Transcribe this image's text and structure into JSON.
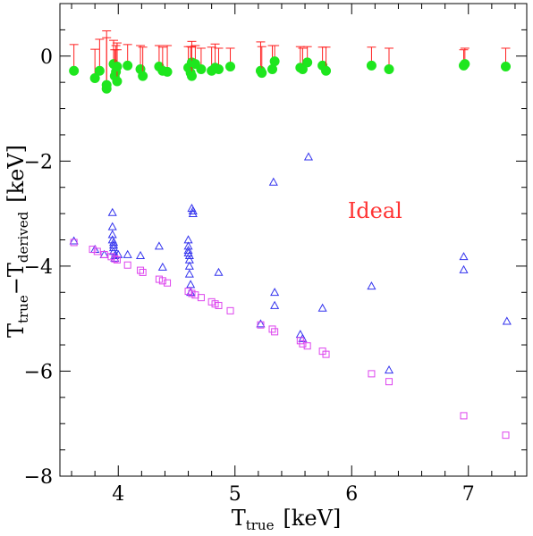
{
  "chart_data": {
    "type": "scatter",
    "title": "",
    "xlabel": {
      "main": "T",
      "sub": "true",
      "unit": "[keV]"
    },
    "ylabel": {
      "main1": "T",
      "sub1": "true",
      "minus": "−",
      "main2": "T",
      "sub2": "derived",
      "unit": "[keV]"
    },
    "xlim": [
      3.5,
      7.5
    ],
    "ylim": [
      -8,
      1
    ],
    "xticks": [
      4,
      5,
      6,
      7
    ],
    "yticks": [
      -8,
      -6,
      -4,
      -2,
      0
    ],
    "xminor_step": 0.2,
    "yminor_step": 0.5,
    "grid": false,
    "annotation": {
      "text": "Ideal",
      "x": 6.2,
      "y": -2.95,
      "color": "#ff3333"
    },
    "series": [
      {
        "name": "",
        "marker": "filled-circle",
        "color": "#1ee61e",
        "errorbar_color": "#ff2020",
        "points": [
          [
            3.62,
            -0.28,
            0.5
          ],
          [
            3.8,
            -0.42,
            0.55
          ],
          [
            3.84,
            -0.28,
            0.6
          ],
          [
            3.9,
            -0.62,
            1.1
          ],
          [
            3.9,
            -0.55,
            0.9
          ],
          [
            3.96,
            -0.15,
            0.45
          ],
          [
            3.97,
            -0.38,
            0.5
          ],
          [
            3.98,
            -0.3,
            0.5
          ],
          [
            3.99,
            -0.48,
            0.6
          ],
          [
            3.99,
            -0.2,
            0.45
          ],
          [
            4.08,
            -0.18,
            0.4
          ],
          [
            4.19,
            -0.25,
            0.45
          ],
          [
            4.21,
            -0.38,
            0.55
          ],
          [
            4.35,
            -0.2,
            0.4
          ],
          [
            4.38,
            -0.28,
            0.45
          ],
          [
            4.42,
            -0.3,
            0.5
          ],
          [
            4.6,
            -0.22,
            0.4
          ],
          [
            4.62,
            -0.32,
            0.5
          ],
          [
            4.63,
            -0.12,
            0.4
          ],
          [
            4.63,
            -0.38,
            0.55
          ],
          [
            4.66,
            -0.15,
            0.35
          ],
          [
            4.71,
            -0.25,
            0.4
          ],
          [
            4.8,
            -0.28,
            0.45
          ],
          [
            4.83,
            -0.22,
            0.45
          ],
          [
            4.86,
            -0.25,
            0.4
          ],
          [
            4.96,
            -0.2,
            0.35
          ],
          [
            5.22,
            -0.28,
            0.55
          ],
          [
            5.23,
            -0.32,
            0.5
          ],
          [
            5.32,
            -0.25,
            0.45
          ],
          [
            5.34,
            -0.1,
            0.3
          ],
          [
            5.56,
            -0.22,
            0.4
          ],
          [
            5.58,
            -0.25,
            0.4
          ],
          [
            5.62,
            -0.12,
            0.3
          ],
          [
            5.75,
            -0.18,
            0.35
          ],
          [
            5.78,
            -0.28,
            0.45
          ],
          [
            6.17,
            -0.18,
            0.35
          ],
          [
            6.32,
            -0.25,
            0.4
          ],
          [
            6.96,
            -0.18,
            0.3
          ],
          [
            6.97,
            -0.15,
            0.3
          ],
          [
            7.32,
            -0.2,
            0.35
          ]
        ]
      },
      {
        "name": "",
        "marker": "open-triangle",
        "color": "#3333ee",
        "points": [
          [
            3.62,
            -3.52
          ],
          [
            3.8,
            -3.68
          ],
          [
            3.88,
            -3.78
          ],
          [
            3.95,
            -2.98
          ],
          [
            3.95,
            -3.25
          ],
          [
            3.95,
            -3.4
          ],
          [
            3.95,
            -3.5
          ],
          [
            3.96,
            -3.55
          ],
          [
            3.96,
            -3.6
          ],
          [
            3.96,
            -3.65
          ],
          [
            3.96,
            -3.72
          ],
          [
            3.97,
            -3.8
          ],
          [
            3.97,
            -3.85
          ],
          [
            4.0,
            -3.78
          ],
          [
            4.08,
            -3.78
          ],
          [
            4.19,
            -3.8
          ],
          [
            4.35,
            -3.62
          ],
          [
            4.38,
            -4.02
          ],
          [
            4.6,
            -3.5
          ],
          [
            4.6,
            -3.62
          ],
          [
            4.6,
            -3.7
          ],
          [
            4.6,
            -3.75
          ],
          [
            4.61,
            -3.8
          ],
          [
            4.61,
            -3.88
          ],
          [
            4.61,
            -4.0
          ],
          [
            4.61,
            -4.15
          ],
          [
            4.62,
            -4.35
          ],
          [
            4.62,
            -4.5
          ],
          [
            4.63,
            -2.9
          ],
          [
            4.64,
            -2.95
          ],
          [
            4.64,
            -3.0
          ],
          [
            4.86,
            -4.12
          ],
          [
            5.22,
            -5.1
          ],
          [
            5.33,
            -2.4
          ],
          [
            5.34,
            -4.5
          ],
          [
            5.34,
            -4.75
          ],
          [
            5.56,
            -5.3
          ],
          [
            5.58,
            -5.38
          ],
          [
            5.63,
            -1.92
          ],
          [
            5.75,
            -4.8
          ],
          [
            6.17,
            -4.38
          ],
          [
            6.32,
            -5.98
          ],
          [
            6.96,
            -3.82
          ],
          [
            6.96,
            -4.07
          ],
          [
            7.33,
            -5.05
          ]
        ]
      },
      {
        "name": "",
        "marker": "open-square",
        "color": "#dd44ee",
        "points": [
          [
            3.62,
            -3.55
          ],
          [
            3.78,
            -3.68
          ],
          [
            3.82,
            -3.72
          ],
          [
            3.88,
            -3.78
          ],
          [
            3.94,
            -3.82
          ],
          [
            3.97,
            -3.86
          ],
          [
            3.99,
            -3.88
          ],
          [
            4.08,
            -3.98
          ],
          [
            4.19,
            -4.08
          ],
          [
            4.21,
            -4.12
          ],
          [
            4.35,
            -4.25
          ],
          [
            4.38,
            -4.28
          ],
          [
            4.42,
            -4.32
          ],
          [
            4.6,
            -4.48
          ],
          [
            4.63,
            -4.52
          ],
          [
            4.66,
            -4.55
          ],
          [
            4.71,
            -4.6
          ],
          [
            4.8,
            -4.68
          ],
          [
            4.83,
            -4.72
          ],
          [
            4.86,
            -4.75
          ],
          [
            4.96,
            -4.85
          ],
          [
            5.22,
            -5.12
          ],
          [
            5.32,
            -5.2
          ],
          [
            5.34,
            -5.25
          ],
          [
            5.56,
            -5.42
          ],
          [
            5.58,
            -5.48
          ],
          [
            5.62,
            -5.52
          ],
          [
            5.75,
            -5.62
          ],
          [
            5.78,
            -5.68
          ],
          [
            6.17,
            -6.05
          ],
          [
            6.32,
            -6.2
          ],
          [
            6.96,
            -6.85
          ],
          [
            7.32,
            -7.22
          ]
        ]
      }
    ]
  }
}
